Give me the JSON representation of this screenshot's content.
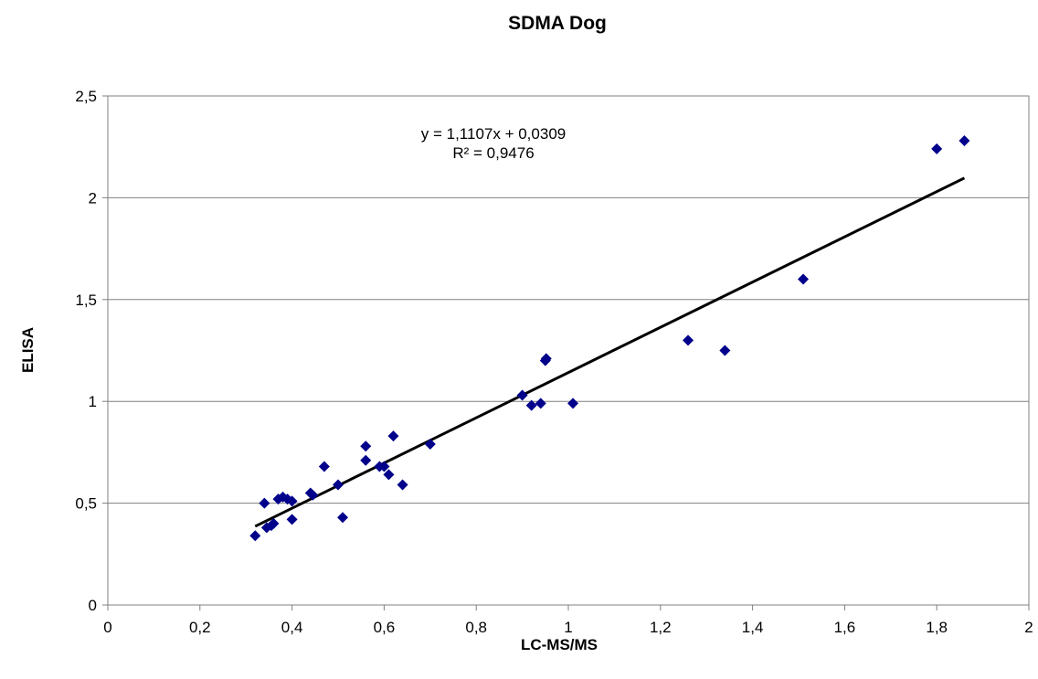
{
  "chart_data": {
    "type": "scatter",
    "title": "SDMA Dog",
    "xlabel": "LC-MS/MS",
    "ylabel": "ELISA",
    "xlim": [
      0,
      2
    ],
    "ylim": [
      0,
      2.5
    ],
    "x_ticks": [
      "0",
      "0,2",
      "0,4",
      "0,6",
      "0,8",
      "1",
      "1,2",
      "1,4",
      "1,6",
      "1,8",
      "2"
    ],
    "y_ticks": [
      "0",
      "0,5",
      "1",
      "1,5",
      "2",
      "2,5"
    ],
    "grid": "horizontal",
    "marker_color": "#00008B",
    "points": [
      [
        0.32,
        0.34
      ],
      [
        0.34,
        0.5
      ],
      [
        0.345,
        0.38
      ],
      [
        0.355,
        0.39
      ],
      [
        0.36,
        0.4
      ],
      [
        0.37,
        0.52
      ],
      [
        0.38,
        0.53
      ],
      [
        0.39,
        0.52
      ],
      [
        0.4,
        0.51
      ],
      [
        0.4,
        0.42
      ],
      [
        0.44,
        0.55
      ],
      [
        0.445,
        0.54
      ],
      [
        0.47,
        0.68
      ],
      [
        0.5,
        0.59
      ],
      [
        0.51,
        0.43
      ],
      [
        0.56,
        0.78
      ],
      [
        0.56,
        0.71
      ],
      [
        0.59,
        0.68
      ],
      [
        0.6,
        0.68
      ],
      [
        0.61,
        0.64
      ],
      [
        0.62,
        0.83
      ],
      [
        0.64,
        0.59
      ],
      [
        0.7,
        0.79
      ],
      [
        0.9,
        1.03
      ],
      [
        0.92,
        0.98
      ],
      [
        0.94,
        0.99
      ],
      [
        0.95,
        1.2
      ],
      [
        0.952,
        1.21
      ],
      [
        1.01,
        0.99
      ],
      [
        1.26,
        1.3
      ],
      [
        1.34,
        1.25
      ],
      [
        1.51,
        1.6
      ],
      [
        1.8,
        2.24
      ],
      [
        1.86,
        2.28
      ]
    ],
    "trendline": {
      "slope": 1.1107,
      "intercept": 0.0309,
      "x_range": [
        0.32,
        1.86
      ],
      "color": "#000000",
      "equation_text": "y = 1,1107x + 0,0309",
      "r2_text": "R² = 0,9476"
    }
  }
}
